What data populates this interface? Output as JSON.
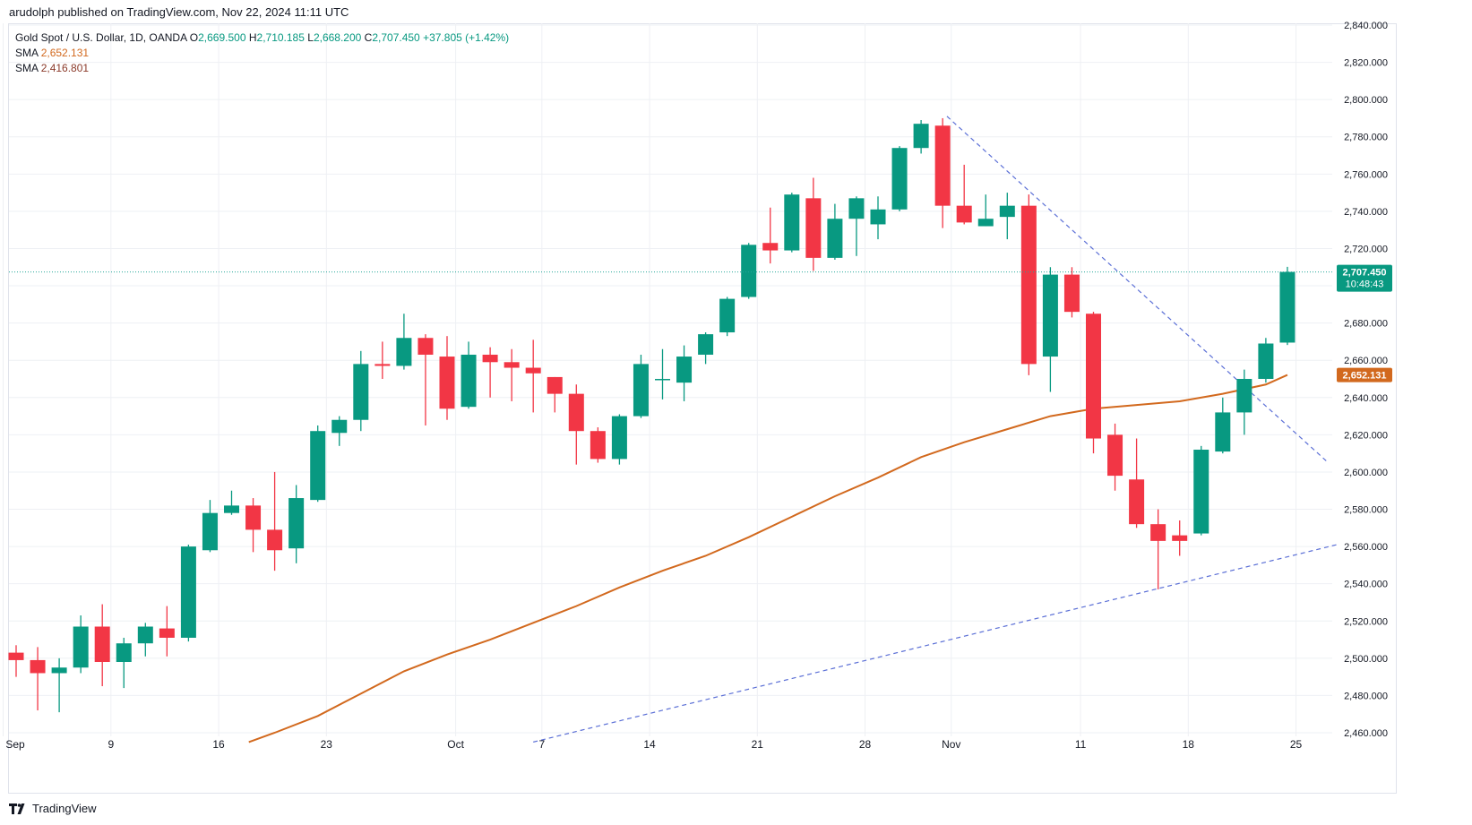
{
  "header": {
    "published": "arudolph published on TradingView.com, Nov 22, 2024 11:11 UTC"
  },
  "legend": {
    "symbol": "Gold Spot / U.S. Dollar, 1D, OANDA",
    "o_label": "O",
    "o": "2,669.500",
    "h_label": "H",
    "h": "2,710.185",
    "l_label": "L",
    "l": "2,668.200",
    "c_label": "C",
    "c": "2,707.450",
    "change": "+37.805 (+1.42%)",
    "sma1_label": "SMA",
    "sma1": "2,652.131",
    "sma2_label": "SMA",
    "sma2": "2,416.801"
  },
  "footer": {
    "brand": "TradingView"
  },
  "colors": {
    "up": "#089981",
    "down": "#f23645",
    "sma": "#d2691e",
    "trend": "#5b6fd6",
    "price_line": "#26a69a",
    "grid": "#eef0f4"
  },
  "chart_data": {
    "type": "candlestick",
    "title": "Gold Spot / U.S. Dollar, 1D, OANDA",
    "ylim": [
      2455,
      2844
    ],
    "y_ticks": [
      2460,
      2480,
      2500,
      2520,
      2540,
      2560,
      2580,
      2600,
      2620,
      2640,
      2660,
      2680,
      2700,
      2720,
      2740,
      2760,
      2780,
      2800,
      2820,
      2840
    ],
    "y_tick_labels": [
      "2,460.000",
      "2,480.000",
      "2,500.000",
      "2,520.000",
      "2,540.000",
      "2,560.000",
      "2,580.000",
      "2,600.000",
      "2,620.000",
      "2,640.000",
      "2,660.000",
      "2,680.000",
      "2,700.000",
      "2,720.000",
      "2,740.000",
      "2,760.000",
      "2,780.000",
      "2,800.000",
      "2,820.000",
      "2,840.000"
    ],
    "x_ticks": [
      {
        "label": "Sep",
        "index": -0.6
      },
      {
        "label": "9",
        "index": 4.4
      },
      {
        "label": "16",
        "index": 9.4
      },
      {
        "label": "23",
        "index": 14.4
      },
      {
        "label": "Oct",
        "index": 20.4
      },
      {
        "label": "7",
        "index": 24.4
      },
      {
        "label": "14",
        "index": 29.4
      },
      {
        "label": "21",
        "index": 34.4
      },
      {
        "label": "28",
        "index": 39.4
      },
      {
        "label": "Nov",
        "index": 43.4
      },
      {
        "label": "11",
        "index": 49.4
      },
      {
        "label": "18",
        "index": 54.4
      },
      {
        "label": "25",
        "index": 59.4
      }
    ],
    "ohlc": [
      {
        "o": 2503,
        "h": 2507,
        "l": 2490,
        "c": 2499
      },
      {
        "o": 2499,
        "h": 2506,
        "l": 2472,
        "c": 2492
      },
      {
        "o": 2492,
        "h": 2500,
        "l": 2471,
        "c": 2495
      },
      {
        "o": 2495,
        "h": 2523,
        "l": 2492,
        "c": 2517
      },
      {
        "o": 2517,
        "h": 2529,
        "l": 2485,
        "c": 2498
      },
      {
        "o": 2498,
        "h": 2511,
        "l": 2484,
        "c": 2508
      },
      {
        "o": 2508,
        "h": 2519,
        "l": 2501,
        "c": 2517
      },
      {
        "o": 2516,
        "h": 2528,
        "l": 2501,
        "c": 2511
      },
      {
        "o": 2511,
        "h": 2561,
        "l": 2509,
        "c": 2560
      },
      {
        "o": 2558,
        "h": 2585,
        "l": 2557,
        "c": 2578
      },
      {
        "o": 2578,
        "h": 2590,
        "l": 2577,
        "c": 2582
      },
      {
        "o": 2582,
        "h": 2586,
        "l": 2557,
        "c": 2569
      },
      {
        "o": 2569,
        "h": 2600,
        "l": 2547,
        "c": 2558
      },
      {
        "o": 2559,
        "h": 2593,
        "l": 2551,
        "c": 2586
      },
      {
        "o": 2585,
        "h": 2625,
        "l": 2584,
        "c": 2622
      },
      {
        "o": 2621,
        "h": 2630,
        "l": 2614,
        "c": 2628
      },
      {
        "o": 2628,
        "h": 2665,
        "l": 2622,
        "c": 2658
      },
      {
        "o": 2658,
        "h": 2670,
        "l": 2650,
        "c": 2657
      },
      {
        "o": 2657,
        "h": 2685,
        "l": 2655,
        "c": 2672
      },
      {
        "o": 2672,
        "h": 2674,
        "l": 2625,
        "c": 2663
      },
      {
        "o": 2662,
        "h": 2673,
        "l": 2628,
        "c": 2634
      },
      {
        "o": 2635,
        "h": 2670,
        "l": 2634,
        "c": 2663
      },
      {
        "o": 2663,
        "h": 2667,
        "l": 2640,
        "c": 2659
      },
      {
        "o": 2659,
        "h": 2666,
        "l": 2638,
        "c": 2656
      },
      {
        "o": 2656,
        "h": 2671,
        "l": 2632,
        "c": 2653
      },
      {
        "o": 2651,
        "h": 2651,
        "l": 2632,
        "c": 2642
      },
      {
        "o": 2642,
        "h": 2647,
        "l": 2604,
        "c": 2622
      },
      {
        "o": 2622,
        "h": 2624,
        "l": 2605,
        "c": 2607
      },
      {
        "o": 2607,
        "h": 2631,
        "l": 2604,
        "c": 2630
      },
      {
        "o": 2630,
        "h": 2663,
        "l": 2629,
        "c": 2658
      },
      {
        "o": 2650,
        "h": 2666,
        "l": 2639,
        "c": 2650
      },
      {
        "o": 2648,
        "h": 2668,
        "l": 2638,
        "c": 2662
      },
      {
        "o": 2663,
        "h": 2675,
        "l": 2658,
        "c": 2674
      },
      {
        "o": 2675,
        "h": 2694,
        "l": 2673,
        "c": 2693
      },
      {
        "o": 2694,
        "h": 2723,
        "l": 2693,
        "c": 2722
      },
      {
        "o": 2723,
        "h": 2742,
        "l": 2712,
        "c": 2719
      },
      {
        "o": 2719,
        "h": 2750,
        "l": 2718,
        "c": 2749
      },
      {
        "o": 2747,
        "h": 2758,
        "l": 2708,
        "c": 2715
      },
      {
        "o": 2715,
        "h": 2744,
        "l": 2714,
        "c": 2736
      },
      {
        "o": 2736,
        "h": 2748,
        "l": 2716,
        "c": 2747
      },
      {
        "o": 2733,
        "h": 2748,
        "l": 2725,
        "c": 2741
      },
      {
        "o": 2741,
        "h": 2775,
        "l": 2740,
        "c": 2774
      },
      {
        "o": 2774,
        "h": 2789,
        "l": 2771,
        "c": 2787
      },
      {
        "o": 2786,
        "h": 2790,
        "l": 2731,
        "c": 2743
      },
      {
        "o": 2743,
        "h": 2765,
        "l": 2733,
        "c": 2734
      },
      {
        "o": 2732,
        "h": 2749,
        "l": 2732,
        "c": 2736
      },
      {
        "o": 2737,
        "h": 2750,
        "l": 2725,
        "c": 2743
      },
      {
        "o": 2743,
        "h": 2749,
        "l": 2652,
        "c": 2658
      },
      {
        "o": 2662,
        "h": 2710,
        "l": 2643,
        "c": 2706
      },
      {
        "o": 2706,
        "h": 2710,
        "l": 2683,
        "c": 2686
      },
      {
        "o": 2685,
        "h": 2686,
        "l": 2610,
        "c": 2618
      },
      {
        "o": 2620,
        "h": 2626,
        "l": 2590,
        "c": 2598
      },
      {
        "o": 2596,
        "h": 2618,
        "l": 2570,
        "c": 2572
      },
      {
        "o": 2572,
        "h": 2580,
        "l": 2537,
        "c": 2563
      },
      {
        "o": 2566,
        "h": 2574,
        "l": 2555,
        "c": 2563
      },
      {
        "o": 2567,
        "h": 2614,
        "l": 2566,
        "c": 2612
      },
      {
        "o": 2611,
        "h": 2640,
        "l": 2610,
        "c": 2632
      },
      {
        "o": 2632,
        "h": 2655,
        "l": 2620,
        "c": 2650
      },
      {
        "o": 2650,
        "h": 2672,
        "l": 2648,
        "c": 2669
      },
      {
        "o": 2669.5,
        "h": 2710.185,
        "l": 2668.2,
        "c": 2707.45
      }
    ],
    "sma": {
      "name": "SMA",
      "value": 2652.131,
      "points": [
        {
          "i": 10.8,
          "v": 2455
        },
        {
          "i": 12,
          "v": 2460
        },
        {
          "i": 14,
          "v": 2469
        },
        {
          "i": 16,
          "v": 2481
        },
        {
          "i": 18,
          "v": 2493
        },
        {
          "i": 20,
          "v": 2502
        },
        {
          "i": 22,
          "v": 2510
        },
        {
          "i": 24,
          "v": 2519
        },
        {
          "i": 26,
          "v": 2528
        },
        {
          "i": 28,
          "v": 2538
        },
        {
          "i": 30,
          "v": 2547
        },
        {
          "i": 32,
          "v": 2555
        },
        {
          "i": 34,
          "v": 2565
        },
        {
          "i": 36,
          "v": 2576
        },
        {
          "i": 38,
          "v": 2587
        },
        {
          "i": 40,
          "v": 2597
        },
        {
          "i": 42,
          "v": 2608
        },
        {
          "i": 44,
          "v": 2616
        },
        {
          "i": 46,
          "v": 2623
        },
        {
          "i": 48,
          "v": 2630
        },
        {
          "i": 50,
          "v": 2634
        },
        {
          "i": 52,
          "v": 2636
        },
        {
          "i": 54,
          "v": 2638
        },
        {
          "i": 56,
          "v": 2642
        },
        {
          "i": 58,
          "v": 2647
        },
        {
          "i": 59,
          "v": 2652.131
        }
      ]
    },
    "trend_lines": [
      {
        "name": "descending-trend-line",
        "from": {
          "i": 43.2,
          "v": 2791
        },
        "to": {
          "i": 60.8,
          "v": 2606
        }
      },
      {
        "name": "ascending-trend-line",
        "from": {
          "i": 24.0,
          "v": 2455
        },
        "to": {
          "i": 61.3,
          "v": 2561
        }
      }
    ],
    "last_price": {
      "value": 2707.45,
      "label": "2,707.450",
      "countdown": "10:48:43"
    },
    "sma_label": {
      "value": 2652.131,
      "label": "2,652.131"
    }
  }
}
